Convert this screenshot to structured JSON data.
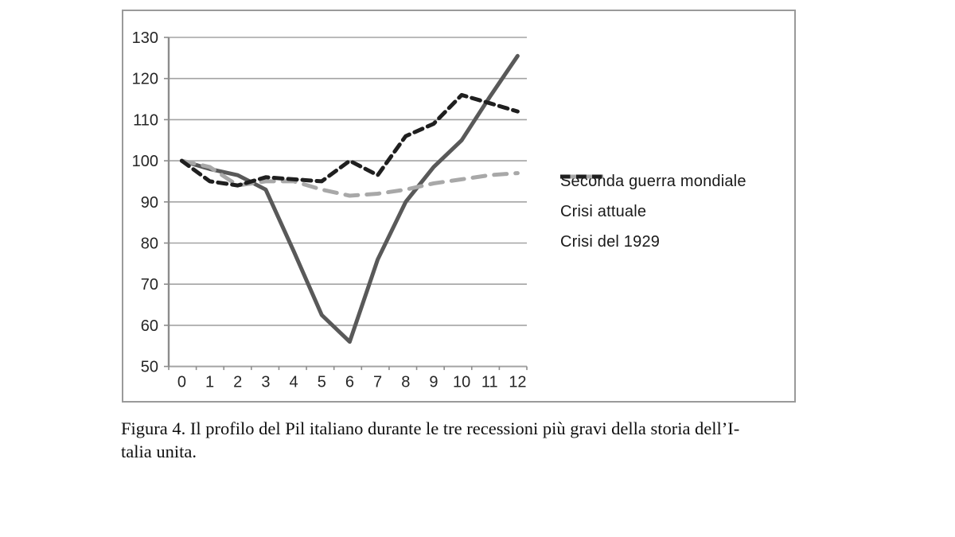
{
  "figure": {
    "caption_line1": "Figura 4. Il profilo del Pil italiano durante le tre recessioni più gravi della storia dell’I-",
    "caption_line2": "talia unita."
  },
  "chart_data": {
    "type": "line",
    "x": [
      "0",
      "1",
      "2",
      "3",
      "4",
      "5",
      "6",
      "7",
      "8",
      "9",
      "10",
      "11",
      "12"
    ],
    "ylim": [
      50,
      130
    ],
    "ytick_step": 10,
    "grid": true,
    "legend_position": "right-inside",
    "background_color": "#ffffff",
    "gridline_color": "#a3a3a3",
    "axis_color": "#8c8c8c",
    "tick_label_color": "#262626",
    "series": [
      {
        "name": "Seconda guerra mondiale",
        "line_style": "solid",
        "color": "#595959",
        "values": [
          100,
          98,
          96.5,
          93,
          78,
          62.5,
          56,
          76,
          90,
          98.5,
          105,
          115.5,
          125.5
        ]
      },
      {
        "name": "Crisi attuale",
        "line_style": "long-dash",
        "color": "#a8a8a8",
        "values": [
          100,
          98.5,
          94,
          95,
          95,
          93,
          91.5,
          92,
          93,
          94.5,
          95.5,
          96.5,
          97
        ]
      },
      {
        "name": "Crisi del 1929",
        "line_style": "dash",
        "color": "#1f1f1f",
        "values": [
          100,
          95,
          94,
          96,
          95.5,
          95,
          100,
          96.5,
          106,
          109,
          116,
          114,
          112
        ]
      }
    ]
  }
}
